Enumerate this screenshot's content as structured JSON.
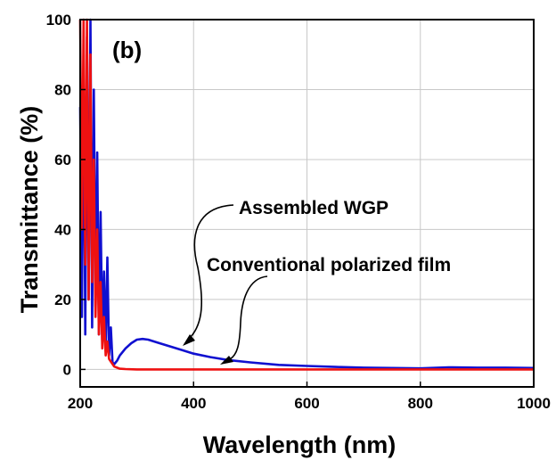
{
  "chart_data": {
    "type": "line",
    "panel_label": "(b)",
    "xlabel": "Wavelength (nm)",
    "ylabel": "Transmittance (%)",
    "xlim": [
      200,
      1000
    ],
    "ylim": [
      -5,
      100
    ],
    "x_ticks": [
      200,
      400,
      600,
      800,
      1000
    ],
    "y_ticks": [
      0,
      20,
      40,
      60,
      80,
      100
    ],
    "grid": true,
    "series": [
      {
        "name": "Assembled WGP",
        "color": "#1010d0",
        "x": [
          200,
          203,
          206,
          209,
          212,
          215,
          218,
          221,
          224,
          227,
          230,
          233,
          236,
          239,
          242,
          245,
          248,
          251,
          254,
          257,
          260,
          265,
          270,
          280,
          290,
          300,
          310,
          320,
          340,
          360,
          380,
          400,
          430,
          460,
          500,
          550,
          600,
          650,
          700,
          750,
          800,
          850,
          900,
          950,
          1000
        ],
        "y": [
          75,
          15,
          90,
          10,
          95,
          20,
          100,
          12,
          80,
          18,
          62,
          10,
          45,
          8,
          28,
          6,
          32,
          4,
          12,
          2,
          1.5,
          2.5,
          4,
          6,
          7.5,
          8.5,
          8.7,
          8.5,
          7.5,
          6.5,
          5.5,
          4.5,
          3.5,
          2.7,
          2,
          1.3,
          1,
          0.7,
          0.5,
          0.4,
          0.3,
          0.6,
          0.5,
          0.5,
          0.4
        ]
      },
      {
        "name": "Conventional polarized film",
        "color": "#ee1111",
        "x": [
          200,
          203,
          206,
          209,
          212,
          215,
          218,
          221,
          224,
          227,
          230,
          233,
          236,
          239,
          242,
          245,
          248,
          251,
          255,
          260,
          270,
          280,
          300,
          400,
          600,
          800,
          1000
        ],
        "y": [
          100,
          40,
          100,
          30,
          100,
          20,
          90,
          25,
          60,
          15,
          40,
          10,
          25,
          6,
          15,
          4,
          8,
          3,
          2,
          0.8,
          0.2,
          0.1,
          0,
          0,
          0,
          0,
          0
        ]
      }
    ],
    "annotations": [
      {
        "text": "Assembled WGP",
        "points_to": {
          "x": 380,
          "y": 5.5
        }
      },
      {
        "text": "Conventional polarized film",
        "points_to": {
          "x": 445,
          "y": 0
        }
      }
    ]
  }
}
